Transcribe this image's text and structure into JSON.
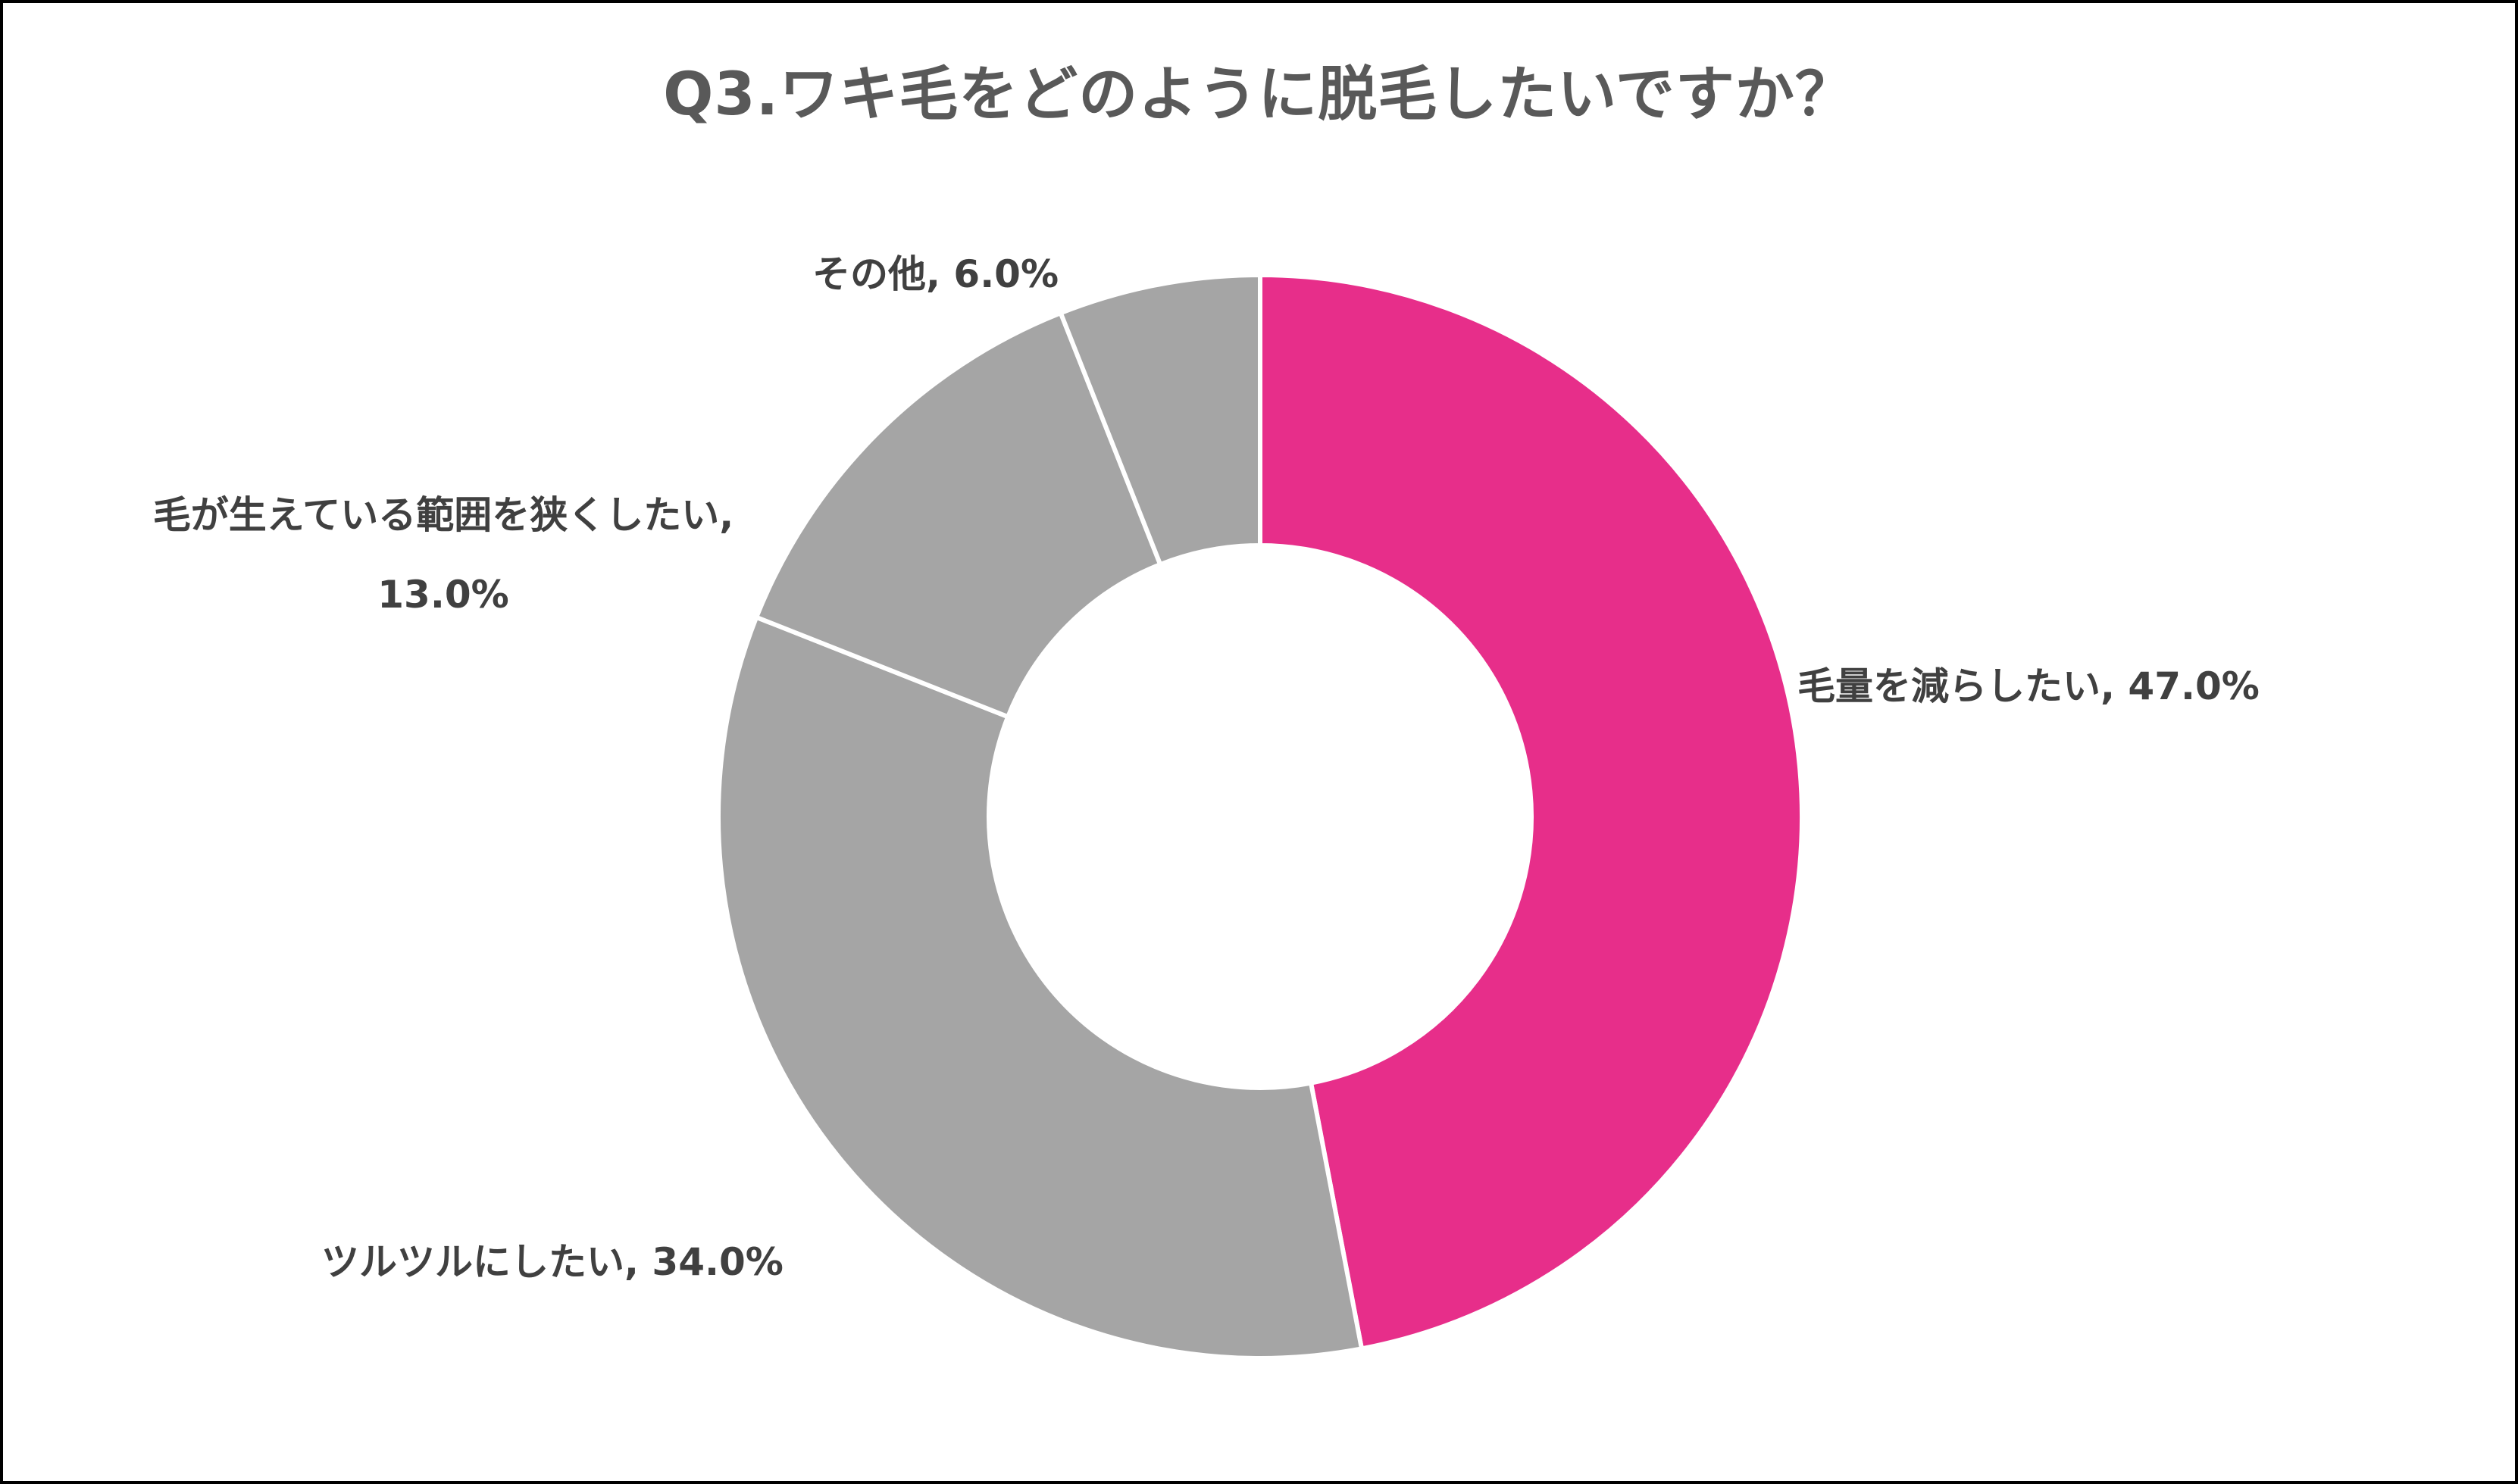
{
  "title": "Q3.ワキ毛をどのように脱毛したいですか？",
  "colors": {
    "accent": "#E72E8A",
    "gray": "#A5A5A5",
    "separator": "#FFFFFF",
    "label_text": "#404040",
    "title_text": "#595959",
    "border": "#000000"
  },
  "labels": {
    "slice0": "毛量を減らしたい, 47.0%",
    "slice1": "ツルツルにしたい, 34.0%",
    "slice2_line1": "毛が生えている範囲を狭くしたい,",
    "slice2_line2": "13.0%",
    "slice3": "その他, 6.0%"
  },
  "chart_data": {
    "type": "pie",
    "variant": "donut",
    "title": "Q3.ワキ毛をどのように脱毛したいですか？",
    "start_angle": "12 o'clock",
    "direction": "clockwise",
    "categories": [
      "毛量を減らしたい",
      "ツルツルにしたい",
      "毛が生えている範囲を狭くしたい",
      "その他"
    ],
    "values": [
      47.0,
      34.0,
      13.0,
      6.0
    ],
    "unit": "%",
    "slice_colors": [
      "#E72E8A",
      "#A5A5A5",
      "#A5A5A5",
      "#A5A5A5"
    ],
    "data_labels": [
      "毛量を減らしたい, 47.0%",
      "ツルツルにしたい, 34.0%",
      "毛が生えている範囲を狭くしたい, 13.0%",
      "その他, 6.0%"
    ],
    "legend": "none"
  }
}
